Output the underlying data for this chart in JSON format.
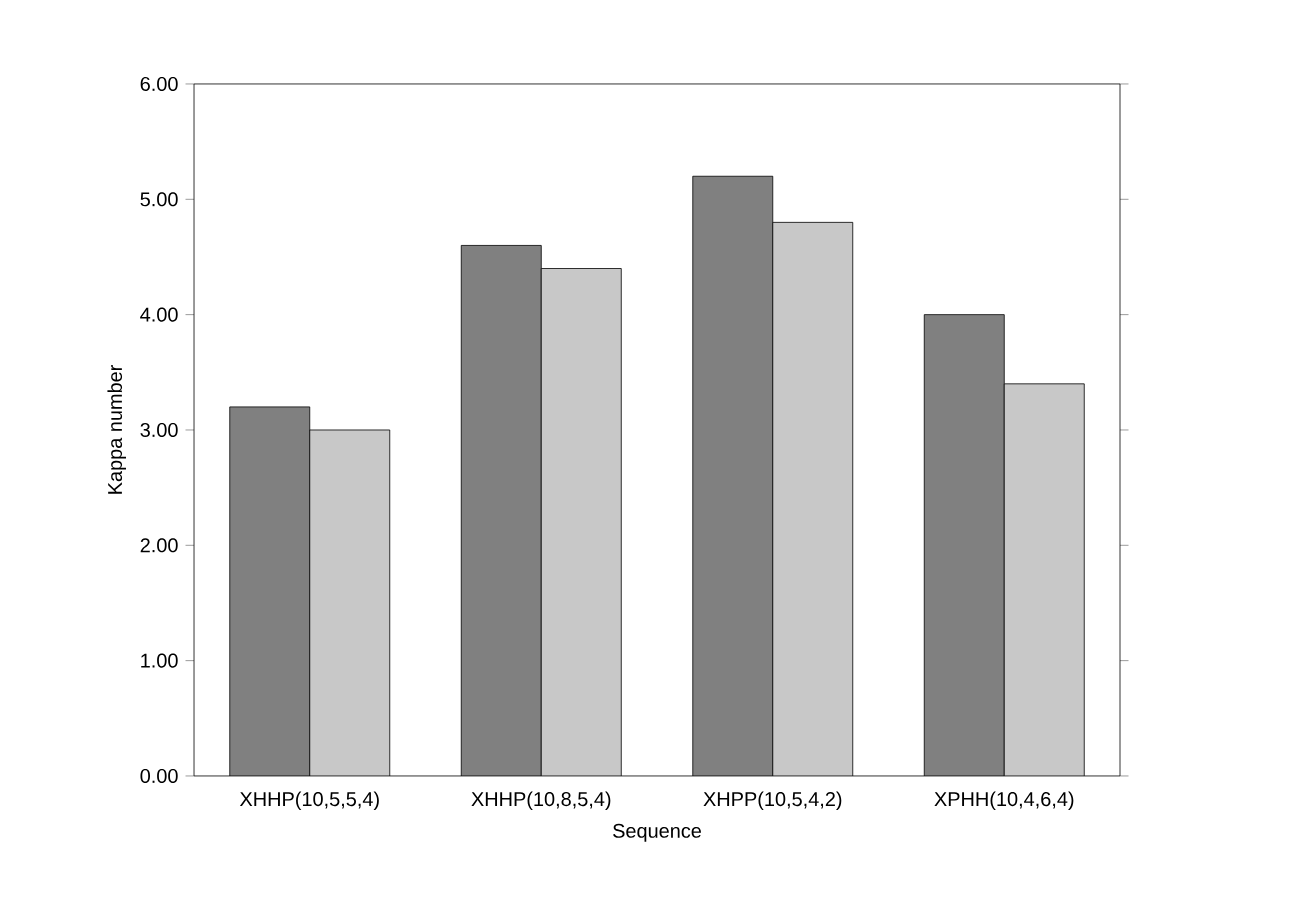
{
  "chart_data": {
    "type": "bar",
    "xlabel": "Sequence",
    "ylabel": "Kappa number",
    "categories": [
      "XHHP(10,5,5,4)",
      "XHHP(10,8,5,4)",
      "XHPP(10,5,4,2)",
      "XPHH(10,4,6,4)"
    ],
    "series": [
      {
        "color": "#808080",
        "values": [
          3.2,
          4.6,
          5.2,
          4.0
        ]
      },
      {
        "color": "#c8c8c8",
        "values": [
          3.0,
          4.4,
          4.8,
          3.4
        ]
      }
    ],
    "ylim": [
      0,
      6
    ],
    "yticks": [
      {
        "value": 0,
        "label": "0.00"
      },
      {
        "value": 1,
        "label": "1.00"
      },
      {
        "value": 2,
        "label": "2.00"
      },
      {
        "value": 3,
        "label": "3.00"
      },
      {
        "value": 4,
        "label": "4.00"
      },
      {
        "value": 5,
        "label": "5.00"
      },
      {
        "value": 6,
        "label": "6.00"
      }
    ]
  }
}
